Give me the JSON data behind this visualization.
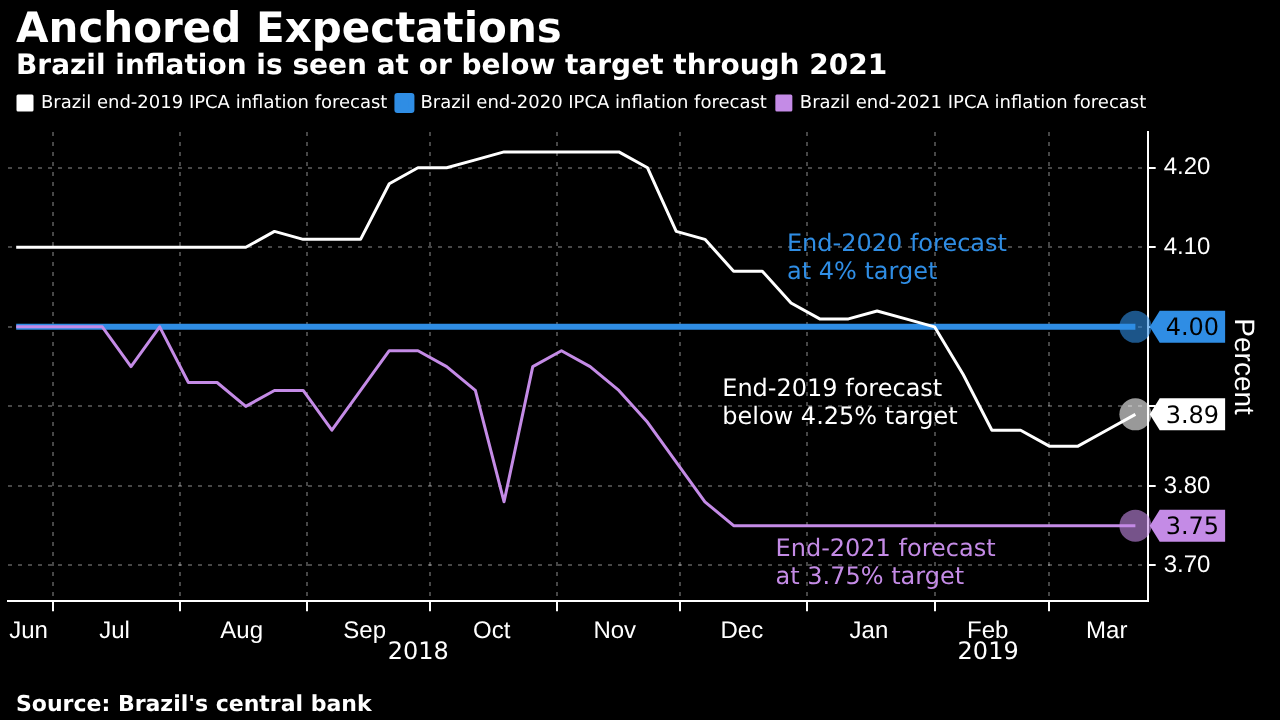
{
  "chart_data": {
    "type": "line",
    "title": "Anchored Expectations",
    "subtitle": "Brazil inflation is seen at or below target through 2021",
    "ylabel": "Percent",
    "x": [
      "2018-06-22",
      "2018-06-29",
      "2018-07-06",
      "2018-07-13",
      "2018-07-20",
      "2018-07-27",
      "2018-08-03",
      "2018-08-10",
      "2018-08-17",
      "2018-08-24",
      "2018-08-31",
      "2018-09-07",
      "2018-09-14",
      "2018-09-21",
      "2018-09-28",
      "2018-10-05",
      "2018-10-12",
      "2018-10-19",
      "2018-10-26",
      "2018-11-02",
      "2018-11-09",
      "2018-11-16",
      "2018-11-23",
      "2018-11-30",
      "2018-12-07",
      "2018-12-14",
      "2018-12-21",
      "2018-12-28",
      "2019-01-04",
      "2019-01-11",
      "2019-01-18",
      "2019-01-25",
      "2019-02-01",
      "2019-02-08",
      "2019-02-15",
      "2019-02-22",
      "2019-03-01",
      "2019-03-08",
      "2019-03-15",
      "2019-03-22"
    ],
    "series": [
      {
        "name": "Brazil end-2019 IPCA inflation forecast",
        "color": "#ffffff",
        "values": [
          4.1,
          4.1,
          4.1,
          4.1,
          4.1,
          4.1,
          4.1,
          4.1,
          4.1,
          4.12,
          4.11,
          4.11,
          4.11,
          4.18,
          4.2,
          4.2,
          4.21,
          4.22,
          4.22,
          4.22,
          4.22,
          4.22,
          4.2,
          4.12,
          4.11,
          4.07,
          4.07,
          4.03,
          4.01,
          4.01,
          4.02,
          4.01,
          4.0,
          3.94,
          3.87,
          3.87,
          3.85,
          3.85,
          3.87,
          3.89
        ],
        "value_labels": [
          null,
          null,
          null,
          null,
          null,
          null,
          null,
          null,
          null,
          null,
          null,
          null,
          null,
          null,
          null,
          null,
          null,
          null,
          null,
          null,
          null,
          null,
          null,
          null,
          null,
          null,
          null,
          null,
          null,
          null,
          null,
          null,
          null,
          null,
          null,
          null,
          null,
          null,
          null,
          "3.89"
        ]
      },
      {
        "name": "Brazil end-2020 IPCA inflation forecast",
        "color": "#2f8de4",
        "values": [
          4.0,
          4.0,
          4.0,
          4.0,
          4.0,
          4.0,
          4.0,
          4.0,
          4.0,
          4.0,
          4.0,
          4.0,
          4.0,
          4.0,
          4.0,
          4.0,
          4.0,
          4.0,
          4.0,
          4.0,
          4.0,
          4.0,
          4.0,
          4.0,
          4.0,
          4.0,
          4.0,
          4.0,
          4.0,
          4.0,
          4.0,
          4.0,
          4.0,
          4.0,
          4.0,
          4.0,
          4.0,
          4.0,
          4.0,
          4.0
        ],
        "value_labels": [
          null,
          null,
          null,
          null,
          null,
          null,
          null,
          null,
          null,
          null,
          null,
          null,
          null,
          null,
          null,
          null,
          null,
          null,
          null,
          null,
          null,
          null,
          null,
          null,
          null,
          null,
          null,
          null,
          null,
          null,
          null,
          null,
          null,
          null,
          null,
          null,
          null,
          null,
          null,
          "4.00"
        ]
      },
      {
        "name": "Brazil end-2021 IPCA inflation forecast",
        "color": "#c48be6",
        "values": [
          4.0,
          4.0,
          4.0,
          4.0,
          3.95,
          4.0,
          3.93,
          3.93,
          3.9,
          3.92,
          3.92,
          3.87,
          3.92,
          3.97,
          3.97,
          3.95,
          3.92,
          3.78,
          3.95,
          3.97,
          3.95,
          3.92,
          3.88,
          3.83,
          3.78,
          3.75,
          3.75,
          3.75,
          3.75,
          3.75,
          3.75,
          3.75,
          3.75,
          3.75,
          3.75,
          3.75,
          3.75,
          3.75,
          3.75,
          3.75
        ],
        "value_labels": [
          null,
          null,
          null,
          null,
          null,
          null,
          null,
          null,
          null,
          null,
          null,
          null,
          null,
          null,
          null,
          null,
          null,
          null,
          null,
          null,
          null,
          null,
          null,
          null,
          null,
          null,
          null,
          null,
          null,
          null,
          null,
          null,
          null,
          null,
          null,
          null,
          null,
          null,
          null,
          "3.75"
        ]
      }
    ],
    "xlim": [
      "2018-06-20",
      "2019-03-25"
    ],
    "xticks": [
      {
        "value": "2018-06-25",
        "label": "Jun"
      },
      {
        "value": "2018-07-01",
        "label": null
      },
      {
        "value": "2018-07-16",
        "label": "Jul"
      },
      {
        "value": "2018-08-01",
        "label": null
      },
      {
        "value": "2018-08-16",
        "label": "Aug"
      },
      {
        "value": "2018-09-01",
        "label": null
      },
      {
        "value": "2018-09-15",
        "label": "Sep"
      },
      {
        "value": "2018-10-01",
        "label": null
      },
      {
        "value": "2018-10-16",
        "label": "Oct"
      },
      {
        "value": "2018-11-01",
        "label": null
      },
      {
        "value": "2018-11-15",
        "label": "Nov"
      },
      {
        "value": "2018-12-01",
        "label": null
      },
      {
        "value": "2018-12-16",
        "label": "Dec"
      },
      {
        "value": "2019-01-01",
        "label": null
      },
      {
        "value": "2019-01-16",
        "label": "Jan"
      },
      {
        "value": "2019-02-01",
        "label": null
      },
      {
        "value": "2019-02-14",
        "label": "Feb"
      },
      {
        "value": "2019-03-01",
        "label": null
      },
      {
        "value": "2019-03-15",
        "label": "Mar"
      }
    ],
    "ylim": [
      3.655,
      4.245
    ],
    "yticks": [
      {
        "value": 3.7,
        "label": "3.70"
      },
      {
        "value": 3.8,
        "label": "3.80"
      },
      {
        "value": 3.9,
        "label": null
      },
      {
        "value": 4.0,
        "label": null
      },
      {
        "value": 4.1,
        "label": "4.10"
      },
      {
        "value": 4.2,
        "label": "4.20"
      }
    ],
    "grid": true,
    "legend": "top left",
    "marker": "none",
    "line_style": "solid",
    "annotations": [
      "End-2019 forecast\nbelow 4.25% target",
      "End-2020 forecast\nat 4% target",
      "End-2021 forecast\nat 3.75% target",
      "2018",
      "2019",
      "Source: Brazil's central bank"
    ]
  }
}
